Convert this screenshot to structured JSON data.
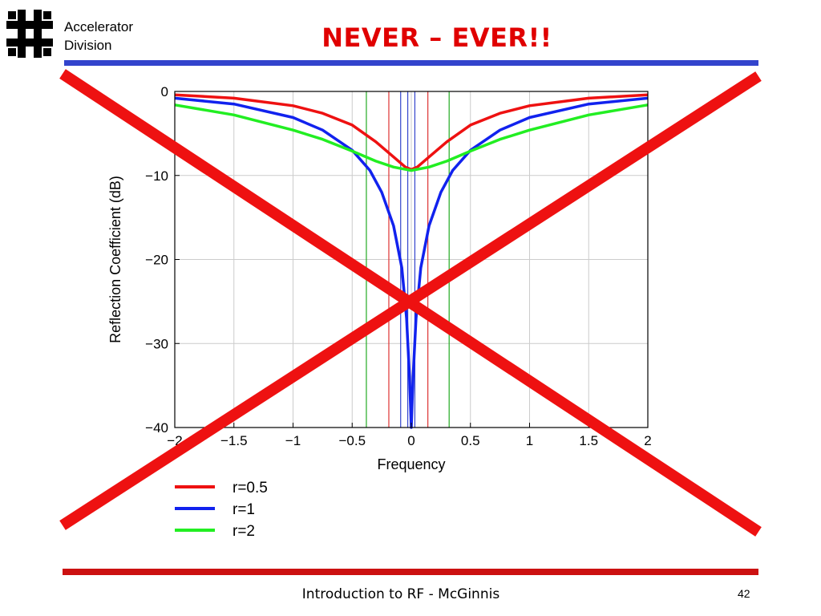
{
  "header": {
    "division_line1": "Accelerator",
    "division_line2": "Division",
    "title": "NEVER – EVER!!"
  },
  "footer": {
    "text": "Introduction to RF - McGinnis",
    "page_number": "42"
  },
  "colors": {
    "title": "#e00000",
    "top_rule": "#3344cc",
    "bottom_rule": "#cc1111",
    "cross": "#ee1111",
    "r05": "#ee1111",
    "r1": "#1122ee",
    "r2": "#22ee22"
  },
  "chart_data": {
    "type": "line",
    "title": "",
    "xlabel": "Frequency",
    "ylabel": "Reflection Coefficient (dB)",
    "xlim": [
      -2,
      2
    ],
    "ylim": [
      -40,
      0
    ],
    "grid": true,
    "legend_position": "below-left",
    "x_ticks": [
      "−2",
      "−1.5",
      "−1",
      "−0.5",
      "0",
      "0.5",
      "1",
      "1.5",
      "2"
    ],
    "y_ticks": [
      "0",
      "−10",
      "−20",
      "−30",
      "−40"
    ],
    "x_tick_values": [
      -2,
      -1.5,
      -1,
      -0.5,
      0,
      0.5,
      1,
      1.5,
      2
    ],
    "y_tick_values": [
      0,
      -10,
      -20,
      -30,
      -40
    ],
    "vertical_markers": [
      {
        "x": -0.19,
        "series": "r=0.5"
      },
      {
        "x": 0.14,
        "series": "r=0.5"
      },
      {
        "x": -0.09,
        "series": "r=1"
      },
      {
        "x": 0.03,
        "series": "r=1"
      },
      {
        "x": -0.38,
        "series": "r=2"
      },
      {
        "x": 0.32,
        "series": "r=2"
      },
      {
        "x": -0.03,
        "series": "r=1"
      }
    ],
    "series": [
      {
        "name": "r=0.5",
        "color": "#ee1111",
        "x": [
          -2,
          -1.5,
          -1,
          -0.75,
          -0.5,
          -0.3,
          -0.15,
          -0.05,
          0,
          0.05,
          0.15,
          0.3,
          0.5,
          0.75,
          1,
          1.5,
          2
        ],
        "values": [
          -0.4,
          -0.8,
          -1.7,
          -2.6,
          -4.0,
          -6.0,
          -7.8,
          -9.0,
          -9.3,
          -9.0,
          -7.8,
          -6.0,
          -4.0,
          -2.6,
          -1.7,
          -0.8,
          -0.4
        ]
      },
      {
        "name": "r=1",
        "color": "#1122ee",
        "x": [
          -2,
          -1.5,
          -1,
          -0.75,
          -0.5,
          -0.35,
          -0.25,
          -0.15,
          -0.08,
          -0.04,
          -0.015,
          0,
          0.015,
          0.04,
          0.08,
          0.15,
          0.25,
          0.35,
          0.5,
          0.75,
          1,
          1.5,
          2
        ],
        "values": [
          -0.8,
          -1.5,
          -3.1,
          -4.6,
          -7.0,
          -9.4,
          -12.0,
          -16.0,
          -21.0,
          -27.0,
          -34.0,
          -40.0,
          -34.0,
          -27.0,
          -21.0,
          -16.0,
          -12.0,
          -9.4,
          -7.0,
          -4.6,
          -3.1,
          -1.5,
          -0.8
        ]
      },
      {
        "name": "r=2",
        "color": "#22ee22",
        "x": [
          -2,
          -1.5,
          -1,
          -0.75,
          -0.5,
          -0.3,
          -0.15,
          0,
          0.15,
          0.3,
          0.5,
          0.75,
          1,
          1.5,
          2
        ],
        "values": [
          -1.6,
          -2.8,
          -4.6,
          -5.7,
          -7.1,
          -8.3,
          -9.0,
          -9.4,
          -9.0,
          -8.3,
          -7.1,
          -5.7,
          -4.6,
          -2.8,
          -1.6
        ]
      }
    ]
  }
}
